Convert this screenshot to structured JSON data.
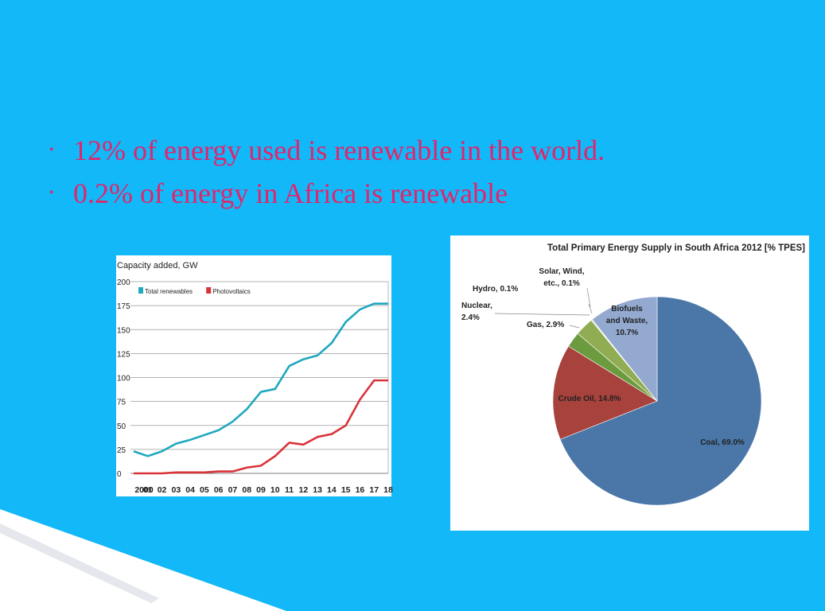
{
  "slide": {
    "bullets": [
      "12% of energy used is renewable in the world.",
      "0.2% of energy in Africa is renewable"
    ],
    "colors": {
      "background": "#12b8f7",
      "bullet_text": "#e3246c"
    }
  },
  "chart_data": [
    {
      "type": "line",
      "title": "Capacity added, GW",
      "x": [
        "2000",
        "01",
        "02",
        "03",
        "04",
        "05",
        "06",
        "07",
        "08",
        "09",
        "10",
        "11",
        "12",
        "13",
        "14",
        "15",
        "16",
        "17",
        "18"
      ],
      "ylim": [
        0,
        200
      ],
      "yticks": [
        0,
        25,
        50,
        75,
        100,
        125,
        150,
        175,
        200
      ],
      "grid": true,
      "legend": "top-left",
      "series": [
        {
          "name": "Total renewables",
          "color": "#1fa8bf",
          "values": [
            23,
            18,
            23,
            31,
            35,
            40,
            45,
            54,
            67,
            85,
            88,
            112,
            119,
            123,
            136,
            158,
            171,
            177,
            177
          ]
        },
        {
          "name": "Photovoltaics",
          "color": "#d9333a",
          "values": [
            0,
            0,
            0,
            1,
            1,
            1,
            2,
            2,
            6,
            8,
            18,
            32,
            30,
            38,
            41,
            50,
            77,
            97,
            97
          ]
        }
      ]
    },
    {
      "type": "pie",
      "title": "Total Primary Energy Supply in South Africa 2012 [% TPES]",
      "slices": [
        {
          "label": "Coal, 69.0%",
          "value": 69.0,
          "color": "#4a76a8"
        },
        {
          "label": "Crude Oil, 14.8%",
          "value": 14.8,
          "color": "#a8423d"
        },
        {
          "label": "Nuclear, 2.4%",
          "value": 2.4,
          "color": "#6c9b3f"
        },
        {
          "label": "Gas, 2.9%",
          "value": 2.9,
          "color": "#91ad54"
        },
        {
          "label": "Hydro, 0.1%",
          "value": 0.1,
          "color": "#4ca0b6"
        },
        {
          "label": "Solar, Wind, etc., 0.1%",
          "value": 0.1,
          "color": "#d18a3e"
        },
        {
          "label": "Biofuels and Waste, 10.7%",
          "value": 10.7,
          "color": "#93a9d0"
        }
      ],
      "label_lines": {
        "hydro": "Hydro, 0.1%",
        "solar": [
          "Solar, Wind,",
          "etc., 0.1%"
        ],
        "nuclear": [
          "Nuclear,",
          "2.4%"
        ],
        "gas": "Gas, 2.9%",
        "biofuels": [
          "Biofuels",
          "and Waste,",
          "10.7%"
        ],
        "crude": "Crude Oil, 14.8%",
        "coal": "Coal, 69.0%"
      }
    }
  ]
}
